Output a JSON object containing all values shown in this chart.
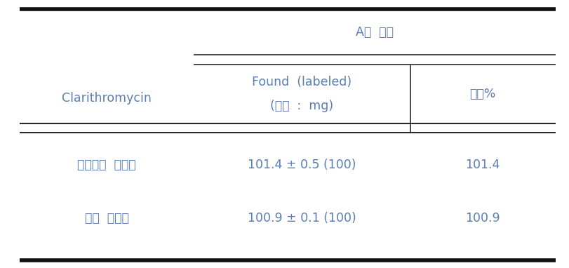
{
  "title_group": "A사  제품",
  "col_header_row1": "Clarithromycin",
  "col_header_found": "Found  (labeled)",
  "col_header_unit": "(단위  :  mg)",
  "col_header_content": "함량%",
  "row1_label": "대한약전  시험법",
  "row1_found": "101.4 ± 0.5 (100)",
  "row1_content": "101.4",
  "row2_label": "그린  시험법",
  "row2_found": "100.9 ± 0.1 (100)",
  "row2_content": "100.9",
  "text_color": "#5a7db5",
  "bg_color": "#ffffff",
  "border_color": "#2a2a2a",
  "top_bar_color": "#111111",
  "bottom_bar_color": "#111111",
  "figsize": [
    8.12,
    3.82
  ],
  "dpi": 100
}
